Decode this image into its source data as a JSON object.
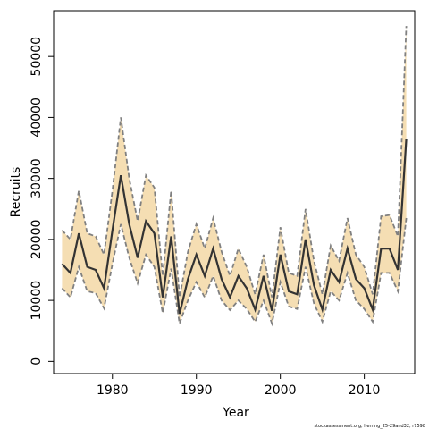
{
  "chart_data": {
    "type": "line",
    "xlabel": "Year",
    "ylabel": "Recruits",
    "xlim": [
      1973,
      2016
    ],
    "ylim": [
      -2000,
      57500
    ],
    "x_ticks": [
      1980,
      1990,
      2000,
      2010
    ],
    "y_ticks": [
      0,
      10000,
      20000,
      30000,
      40000,
      50000
    ],
    "grid": false,
    "colors": {
      "band": "#f5deb3",
      "estimate": "#333333",
      "bounds": "#808080"
    },
    "x": [
      1974,
      1975,
      1976,
      1977,
      1978,
      1979,
      1980,
      1981,
      1982,
      1983,
      1984,
      1985,
      1986,
      1987,
      1988,
      1989,
      1990,
      1991,
      1992,
      1993,
      1994,
      1995,
      1996,
      1997,
      1998,
      1999,
      2000,
      2001,
      2002,
      2003,
      2004,
      2005,
      2006,
      2007,
      2008,
      2009,
      2010,
      2011,
      2012,
      2013,
      2014,
      2015
    ],
    "series": [
      {
        "role": "estimate",
        "values": [
          16000,
          14500,
          21000,
          15500,
          15000,
          12000,
          21500,
          30500,
          22500,
          17000,
          23000,
          21000,
          10500,
          20500,
          7800,
          13500,
          17500,
          14000,
          18500,
          13500,
          10500,
          14000,
          12000,
          8500,
          14000,
          8300,
          17500,
          11500,
          11000,
          20000,
          12500,
          8500,
          15000,
          13000,
          18500,
          13500,
          12000,
          8500,
          18500,
          18500,
          15000,
          36500
        ]
      },
      {
        "role": "upper",
        "values": [
          21500,
          20000,
          28000,
          21000,
          20500,
          17500,
          28000,
          40000,
          30000,
          23000,
          30500,
          28500,
          14000,
          28000,
          10500,
          18000,
          22500,
          18500,
          23500,
          18000,
          14000,
          18500,
          15500,
          11000,
          17500,
          10500,
          22000,
          14500,
          14000,
          25000,
          16500,
          11000,
          19000,
          16500,
          23500,
          17500,
          15500,
          11000,
          23800,
          24000,
          20500,
          55000
        ]
      },
      {
        "role": "lower",
        "values": [
          12000,
          10500,
          15500,
          11500,
          11200,
          8700,
          16000,
          22500,
          17000,
          12800,
          17500,
          15500,
          7900,
          15200,
          6200,
          10000,
          13000,
          10500,
          14000,
          10000,
          8400,
          10000,
          8600,
          6500,
          10000,
          6200,
          13000,
          9000,
          8600,
          15500,
          9500,
          6500,
          11500,
          10000,
          14500,
          10000,
          8600,
          6500,
          14500,
          14500,
          11500,
          23500
        ]
      }
    ]
  },
  "footer": {
    "note": "stockassessment.org, herring_25-29and32, r7598"
  }
}
